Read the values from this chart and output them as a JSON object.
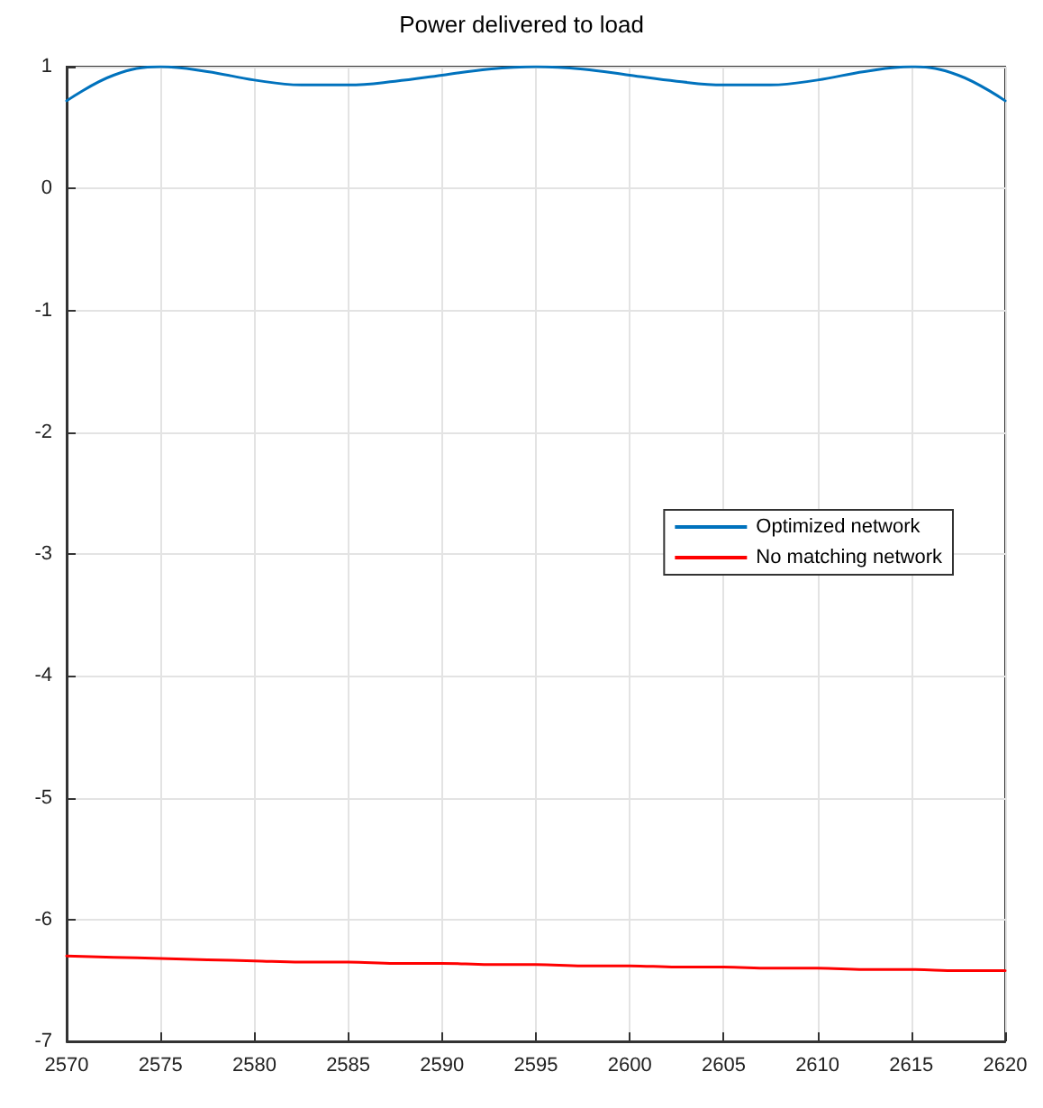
{
  "chart_data": {
    "type": "line",
    "title": "Power delivered to load",
    "x": [
      2570,
      2572.5,
      2575,
      2577.5,
      2580,
      2582.5,
      2585,
      2587.5,
      2590,
      2592.5,
      2595,
      2597.5,
      2600,
      2602.5,
      2605,
      2607.5,
      2610,
      2612.5,
      2615,
      2617.5,
      2620
    ],
    "series": [
      {
        "name": "Optimized network",
        "color": "#0072bd",
        "values": [
          0.72,
          0.93,
          1.0,
          0.96,
          0.89,
          0.85,
          0.85,
          0.88,
          0.93,
          0.98,
          1.0,
          0.98,
          0.93,
          0.88,
          0.85,
          0.85,
          0.89,
          0.96,
          1.0,
          0.93,
          0.72
        ]
      },
      {
        "name": "No matching network",
        "color": "#ff0000",
        "values": [
          -6.3,
          -6.31,
          -6.32,
          -6.33,
          -6.34,
          -6.35,
          -6.35,
          -6.36,
          -6.36,
          -6.37,
          -6.37,
          -6.38,
          -6.38,
          -6.39,
          -6.39,
          -6.4,
          -6.4,
          -6.41,
          -6.41,
          -6.42,
          -6.42
        ]
      }
    ],
    "xlim": [
      2570,
      2620
    ],
    "xticks": [
      2570,
      2575,
      2580,
      2585,
      2590,
      2595,
      2600,
      2605,
      2610,
      2615,
      2620
    ],
    "ylim": [
      -7,
      1
    ],
    "yticks": [
      -7,
      -6,
      -5,
      -4,
      -3,
      -2,
      -1,
      0,
      1
    ],
    "grid": true,
    "legend": "right",
    "marker": "none",
    "line_style": "solid"
  }
}
